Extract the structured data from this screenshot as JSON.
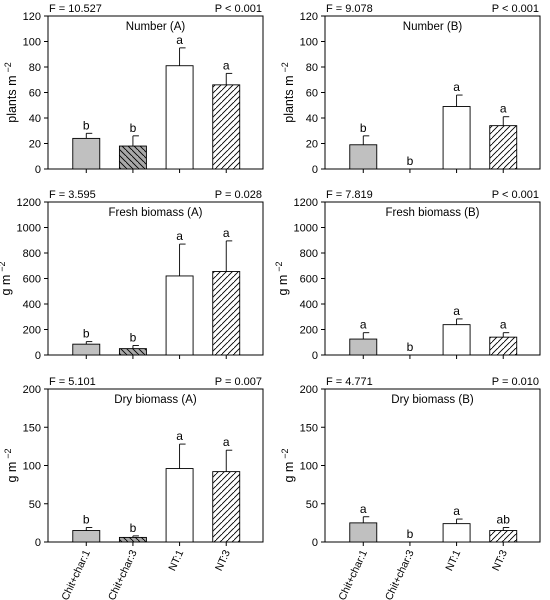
{
  "colors": {
    "bar_gray": "#c0c0c0",
    "bar_gray_dark": "#a8a8a8",
    "bar_white": "#ffffff",
    "outline": "#000000"
  },
  "categories": [
    "Chit+char:1",
    "Chit+char:3",
    "NT:1",
    "NT:3"
  ],
  "chart_data": [
    {
      "type": "bar",
      "title": "Number (A)",
      "f_stat": "F = 10.527",
      "p_value": "P < 0.001",
      "ylabel": "plants m",
      "ylabel_sup": "−2",
      "ylim": [
        0,
        120
      ],
      "yticks": [
        0,
        20,
        40,
        60,
        80,
        100,
        120
      ],
      "values": [
        24,
        18,
        81,
        66
      ],
      "errors": [
        4,
        8,
        14,
        9
      ],
      "letters": [
        "b",
        "b",
        "a",
        "a"
      ]
    },
    {
      "type": "bar",
      "title": "Number (B)",
      "f_stat": "F = 9.078",
      "p_value": "P < 0.001",
      "ylabel": "plants m",
      "ylabel_sup": "−2",
      "ylim": [
        0,
        120
      ],
      "yticks": [
        0,
        20,
        40,
        60,
        80,
        100,
        120
      ],
      "values": [
        19,
        0,
        49,
        34
      ],
      "errors": [
        7,
        0,
        9,
        7
      ],
      "letters": [
        "b",
        "b",
        "a",
        "a"
      ]
    },
    {
      "type": "bar",
      "title": "Fresh biomass (A)",
      "f_stat": "F = 3.595",
      "p_value": "P = 0.028",
      "ylabel": "g m",
      "ylabel_sup": "−2",
      "ylim": [
        0,
        1200
      ],
      "yticks": [
        0,
        200,
        400,
        600,
        800,
        1000,
        1200
      ],
      "values": [
        85,
        50,
        620,
        655
      ],
      "errors": [
        20,
        25,
        250,
        240
      ],
      "letters": [
        "b",
        "b",
        "a",
        "a"
      ]
    },
    {
      "type": "bar",
      "title": "Fresh biomass (B)",
      "f_stat": "F = 7.819",
      "p_value": "P < 0.001",
      "ylabel": "g m",
      "ylabel_sup": "−2",
      "ylim": [
        0,
        1200
      ],
      "yticks": [
        0,
        200,
        400,
        600,
        800,
        1000,
        1200
      ],
      "values": [
        125,
        0,
        238,
        140
      ],
      "errors": [
        50,
        0,
        45,
        35
      ],
      "letters": [
        "a",
        "b",
        "a",
        "a"
      ]
    },
    {
      "type": "bar",
      "title": "Dry biomass (A)",
      "f_stat": "F = 5.101",
      "p_value": "P = 0.007",
      "ylabel": "g m",
      "ylabel_sup": "−2",
      "ylim": [
        0,
        200
      ],
      "yticks": [
        0,
        50,
        100,
        150,
        200
      ],
      "values": [
        15,
        6,
        96,
        92
      ],
      "errors": [
        4,
        2,
        32,
        28
      ],
      "letters": [
        "b",
        "b",
        "a",
        "a"
      ]
    },
    {
      "type": "bar",
      "title": "Dry biomass (B)",
      "f_stat": "F = 4.771",
      "p_value": "P = 0.010",
      "ylabel": "g m",
      "ylabel_sup": "−2",
      "ylim": [
        0,
        200
      ],
      "yticks": [
        0,
        50,
        100,
        150,
        200
      ],
      "values": [
        25,
        0,
        24,
        15
      ],
      "errors": [
        8,
        0,
        6,
        4
      ],
      "letters": [
        "a",
        "b",
        "a",
        "ab"
      ]
    }
  ]
}
